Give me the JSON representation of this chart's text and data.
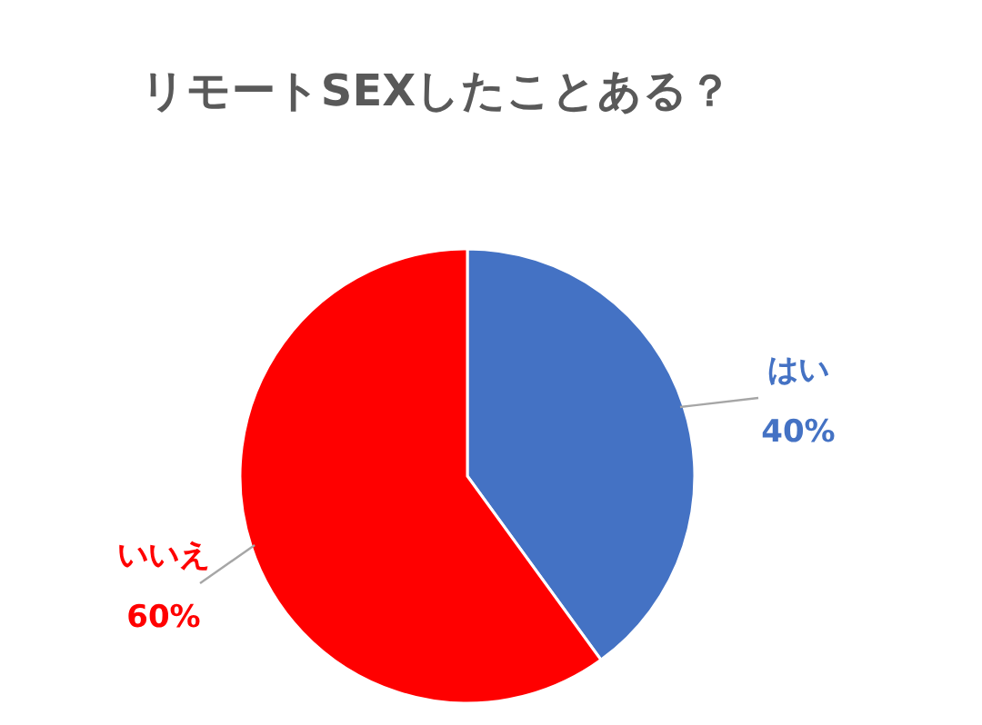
{
  "chart_data": {
    "type": "pie",
    "title": "リモートSEXしたことある？",
    "categories": [
      "はい",
      "いいえ"
    ],
    "values": [
      40,
      60
    ],
    "colors": [
      "#4472c4",
      "#ff0000"
    ],
    "value_labels": [
      "40%",
      "60%"
    ]
  }
}
